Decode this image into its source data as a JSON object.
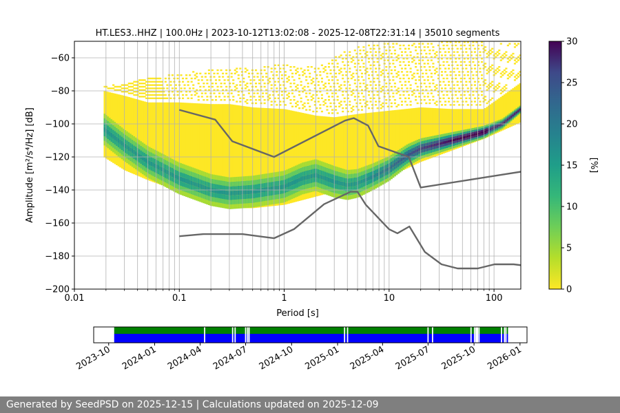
{
  "chart_data": [
    {
      "type": "heatmap",
      "title": "HT.LES3..HHZ | 100.0Hz | 2023-10-12T13:02:08 - 2025-12-08T22:31:14 | 35010 segments",
      "xlabel": "Period [s]",
      "ylabel": "Amplitude [m²/s⁴/Hz] [dB]",
      "x_scale": "log",
      "xlim": [
        0.01,
        180
      ],
      "ylim": [
        -200,
        -50
      ],
      "x_ticks": [
        0.01,
        0.1,
        1,
        10,
        100
      ],
      "x_tick_labels": [
        "0.01",
        "0.1",
        "1",
        "10",
        "100"
      ],
      "y_ticks": [
        -200,
        -180,
        -160,
        -140,
        -120,
        -100,
        -80,
        -60
      ],
      "y_tick_labels": [
        "−200",
        "−180",
        "−160",
        "−140",
        "−120",
        "−100",
        "−80",
        "−60"
      ],
      "grid": true,
      "colormap": "viridis_r",
      "colorbar_label": "[%]",
      "colorbar_range": [
        0,
        30
      ],
      "colorbar_ticks": [
        0,
        5,
        10,
        15,
        20,
        25,
        30
      ],
      "period_range_data": [
        0.019,
        180
      ],
      "mode_curve": {
        "x": [
          0.019,
          0.03,
          0.05,
          0.1,
          0.2,
          0.3,
          0.5,
          1,
          1.5,
          2,
          3,
          4,
          5,
          7,
          10,
          15,
          20,
          40,
          80,
          120,
          180
        ],
        "y": [
          -103,
          -113,
          -123,
          -133,
          -140,
          -142,
          -141,
          -138,
          -133,
          -131,
          -135,
          -137,
          -136,
          -132,
          -127,
          -119,
          -115,
          -110,
          -105,
          -100,
          -91
        ]
      },
      "density_band_lower": {
        "x": [
          0.019,
          0.03,
          0.05,
          0.1,
          0.2,
          0.3,
          0.5,
          1,
          2,
          3,
          5,
          10,
          20,
          40,
          80,
          180
        ],
        "y": [
          -120,
          -128,
          -134,
          -141,
          -148,
          -151,
          -151,
          -149,
          -144,
          -141,
          -139,
          -132,
          -123,
          -116,
          -109,
          -99
        ]
      },
      "density_band_upper": {
        "x": [
          0.019,
          0.03,
          0.05,
          0.1,
          0.2,
          0.3,
          0.5,
          1,
          2,
          3,
          5,
          10,
          20,
          40,
          80,
          180
        ],
        "y": [
          -80,
          -83,
          -87,
          -87,
          -88,
          -88,
          -90,
          -91,
          -95,
          -96,
          -94,
          -92,
          -90,
          -91,
          -91,
          -75
        ]
      },
      "sparse_upper_edge": {
        "x": [
          0.019,
          0.05,
          0.1,
          0.3,
          0.5,
          1,
          2,
          3,
          4,
          5,
          7,
          10,
          20,
          30,
          50,
          80,
          180
        ],
        "y": [
          -78,
          -73,
          -70,
          -66,
          -67,
          -64,
          -66,
          -60,
          -56,
          -54,
          -52,
          -51,
          -51,
          -51,
          -50,
          -51,
          -51
        ]
      },
      "noise_model_high": {
        "x": [
          0.1,
          0.22,
          0.32,
          0.8,
          3.8,
          4.6,
          6.3,
          7.9,
          15.4,
          20,
          354.8
        ],
        "y": [
          -91.5,
          -97.4,
          -110.5,
          -120,
          -98,
          -96.5,
          -101,
          -113.5,
          -120,
          -138.5,
          -126
        ]
      },
      "noise_model_low": {
        "x": [
          0.1,
          0.17,
          0.4,
          0.8,
          1.24,
          2.4,
          4.3,
          5,
          6,
          10,
          12,
          15.6,
          21.9,
          31.6,
          45,
          70,
          101,
          154,
          328
        ],
        "y": [
          -168,
          -166.7,
          -166.7,
          -169.2,
          -163.7,
          -148.6,
          -141.1,
          -141.1,
          -149,
          -163.8,
          -166.2,
          -162.1,
          -177.5,
          -185,
          -187.5,
          -187.5,
          -185,
          -185,
          -187.5
        ]
      }
    },
    {
      "type": "timeline",
      "x_tick_labels": [
        "2023-10",
        "2024-01",
        "2024-04",
        "2024-07",
        "2024-10",
        "2025-01",
        "2025-04",
        "2025-07",
        "2025-10",
        "2026-01"
      ],
      "xlim": [
        "2023-09-01",
        "2026-01-15"
      ],
      "coverage_start": "2023-10-12",
      "coverage_end": "2025-12-08",
      "gaps": [
        "2024-04-10",
        "2024-06-05",
        "2024-06-10",
        "2024-07-01",
        "2024-07-05",
        "2024-07-08",
        "2025-01-15",
        "2025-01-21",
        "2025-07-01",
        "2025-07-10",
        "2025-09-25",
        "2025-10-02",
        "2025-10-05",
        "2025-10-06",
        "2025-10-08",
        "2025-10-11",
        "2025-11-25",
        "2025-12-01",
        "2025-12-04"
      ],
      "colors": {
        "top": "#008000",
        "bottom": "#0000ff"
      }
    }
  ],
  "footer": {
    "text": "Generated by SeedPSD on 2025-12-15 | Calculations updated on 2025-12-09"
  },
  "colors": {
    "model_curves": "#666666",
    "grid": "#b0b0b0",
    "footer_bg": "#7f7f7f"
  }
}
